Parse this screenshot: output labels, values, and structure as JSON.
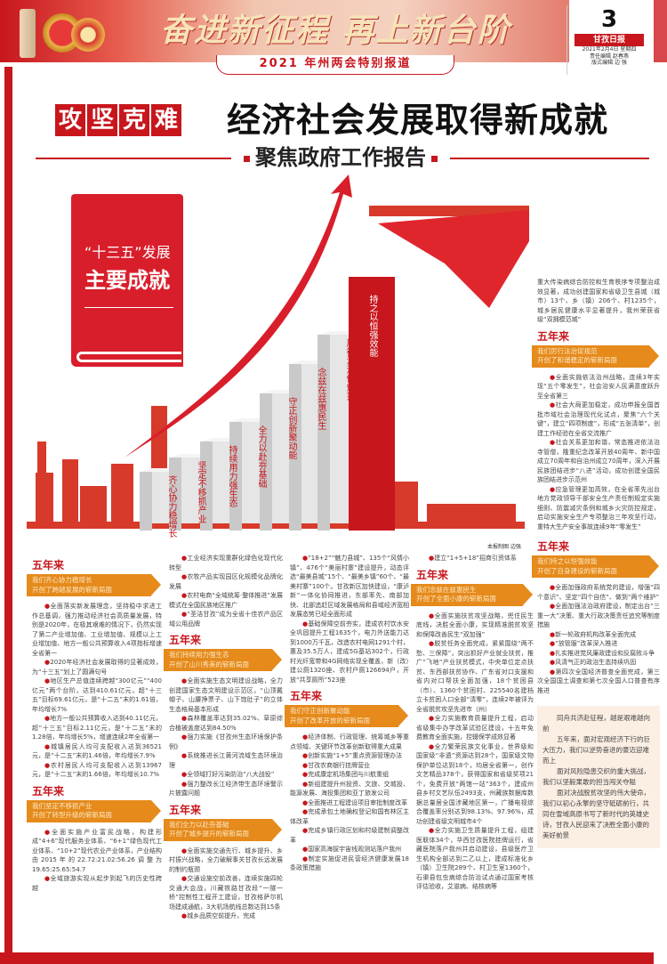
{
  "masthead": {
    "slogan": "奋进新征程 再上新台阶",
    "special_report": "2021 年州两会特别报道",
    "page_number": "3",
    "paper_name": "甘孜日报",
    "date": "2021年2月4日 星期四",
    "editor": "责任编辑 赵春燕",
    "layout_editor": "版式编辑 边 强"
  },
  "headline": {
    "kicker": [
      "攻",
      "坚",
      "克",
      "难"
    ],
    "title": "经济社会发展取得新成就",
    "subtitle": "聚焦政府工作报告"
  },
  "infographic": {
    "book_line1": "“十三五”发展",
    "book_line2": "主要成就",
    "steps": [
      "齐心协力稳增长",
      "坚定不移抓产业",
      "持续用力强生态",
      "全力以赴夯基础",
      "守正创新聚动能",
      "念兹在兹惠民生",
      "厉行法治促规范",
      "持之以恒强效能"
    ],
    "credit": "本报制图 边强",
    "colors": {
      "red": "#c8161d",
      "orange": "#e58a1b",
      "step_gray": "#e6e6e6"
    }
  },
  "sections_label": "五年来",
  "columns": {
    "right_top": {
      "paras": [
        "重大传染病综合防控和生育秩序专项整治成效显著，成功创建国家和省级卫生县城（城市）13个、乡（镇）206个、村1235个，城乡居民健康水平显著提升，我州荣获省级“双拥模范城”"
      ],
      "section": {
        "banner": [
          "我们厉行法治促规范",
          "开创了和谐稳定的崭新局面"
        ],
        "items": [
          "全面实施依法治州战略，连续3年实现“五个零发生”，社会治安人民满意度跃升至全省第三",
          "社会大局更加稳定，成功申报全国首批市域社会治理现代化试点，聚焦“六个关键”，建立“四项制度”，形成“五张清单”，创建工作经验在全省交流推广",
          "社会关系更加和谐，常态推进依法治寺管僧，隆重纪念改革开放40周年、新中国成立70周年和自治州成立70周年，深入开展民族团结进步“八进”活动，成功创建全国民族团结进步示范州",
          "应急管理更加高效，在全省率先出台地方党政领导干部安全生产责任制规定实施细则、防震减灾条例和城乡火灾防控规定，启动实施安全生产专项整治三年攻坚行动，重特大生产安全事故连续9年“零发生”"
        ]
      }
    },
    "col1": [
      {
        "banner": [
          "我们齐心协力稳增长",
          "开创了跨越发展的崭新局面"
        ],
        "items": [
          "全面落实新发展理念，坚持稳中求进工作总基调，强力推动经济社会高质量发展，特别是2020年，在极其艰难的情况下，仍然实现了第二产业增加值、工业增加值、规模以上工业增加值、地方一般公共预算收入4项指标增速全省第一",
          "2020年经济社会发展取得的显著成效，为“十三五”划上了圆满句号",
          "地区生产总值连续跨越“300亿元”“400亿元”两个台阶，达到410.61亿元，超“十三五”目标69.61亿元，是“十二五”末的1.61倍，年均增长7%",
          "地方一般公共预算收入达到40.11亿元，超“十三五”目标2.11亿元，是“十二五”末的1.28倍，年均增长5%，增速连续2年全省第一",
          "城镇居民人均可支配收入达到36521元，是“十二五”末的1.46倍，年均增长7.9%",
          "农村居民人均可支配收入达到13967元，是“十二五”末的1.66倍，年均增长10.7%"
        ]
      },
      {
        "banner": [
          "我们坚定不移抓产业",
          "开创了转型升级的崭新局面"
        ],
        "items": [
          "全面实施产业富民战略，构建形成“4+6”现代服务业体系、“6+1”绿色现代工业体系、“10+2”现代农业产业体系，产业结构由2015年的22.72:21.02:56.26调整为19.65:25.65:54.7",
          "全域旅游实现从起步到起飞的历史性跨越"
        ]
      }
    ],
    "col2": [
      {
        "banner": null,
        "items": [
          "工业经济实现重群化绿色化现代化转型",
          "农牧产品实现园区化规模化品牌化发展",
          "农村电商“全域统筹·整体推进”发展模式在全国民族地区推广",
          "“圣洁甘孜”成为全省十佳农产品区域公用品牌"
        ]
      },
      {
        "banner": [
          "我们持续用力强生态",
          "开创了山川秀美的崭新局面"
        ],
        "items": [
          "全面实施生态文明建设战略，全力创建国家生态文明建设示范区，“山顶戴帽子、山腰挣票子、山下饱肚子”的立体生态格局基本形成",
          "森林覆盖率达到35.02%、草原综合植被盖度达到84.50%",
          "强力实施《甘孜州生态环境保护条例》",
          "系统推进长江黄河流域生态环境治理",
          "全领域打好污染防治“八大战役”",
          "强力整改长江经济带生态环境警示片披露问题"
        ]
      },
      {
        "banner": [
          "我们全力以赴夯基础",
          "开创了城乡提升的崭新局面"
        ],
        "items": [
          "全面实施交通先行、城乡提升、乡村振兴战略，全力破解事关甘孜长远发展的制约瓶颈",
          "交通设施空前改善，连续实施四轮交通大会战，川藏铁路甘孜段“一隧一桥”控制性工程开工建设，甘孜格萨尔机场建成通航，3大机场航线总数达到15条",
          "城乡品质空前提升，完成"
        ]
      }
    ],
    "col3": [
      {
        "banner": null,
        "items": [
          "“18+2”“魅力县城”、135个“风情小镇”、476个“美丽村寨”建设提升，动态评选“最美县城”15个、“最美乡镇”60个、“最美村寨”100个。甘孜新区加快建设，“康泸新”一体化协同推进，东部率先、南部加快、北部追赶区域发展格局和县域经济宽相发展态势已经全面形成",
          "基础保障空前夯实，建成农村饮水安全巩固提升工程1635个，电力外送能力达到1000万千瓦，改造农村电网1291个村，惠及35.5万人，建成5G基站302个，行政村光纤宽带和4G网络实现全覆盖，新（改）建公厕1320座、农村户厕126694户，开放“共享厕所”523座"
        ]
      },
      {
        "banner": [
          "我们守正创新聚动能",
          "开创了改革开放的崭新局面"
        ],
        "items": [
          "经济体制、行政管理、统筹城乡等重点领域、关键环节改革创新取得重大成果",
          "创新实施“1+5”重点资源管理办法",
          "甘孜农商银行挂牌营业",
          "完成康定机场集团与川航重组",
          "新组建提升州投资、文旅、交城投、能源发展、海投集团和亚丁旅发公司",
          "全面推进工程建设项目审批制度改革",
          "完成承包土地确权登记和国有林区主体改革",
          "完成乡镇行政区划和村级建制调整改革",
          "国家高海拔宇宙线观测站落户我州",
          "制定实施促进民营经济健康发展18条政策措施"
        ]
      }
    ],
    "col4": [
      {
        "banner": null,
        "items": [
          "建立“1+5+18”招商引资体系"
        ]
      },
      {
        "banner": [
          "我们念兹在兹惠民生",
          "开创了全面小康的崭新局面"
        ],
        "items": [
          "全面实施扶贫攻坚战略，兜住民生底线，决胜全面小康，实现精准脱贫攻坚和保障改善民生“双加强”",
          "脱贫任务全面完成，紧紧围绕“两不愁、三保障”，突出抓好产业就业扶贫，推广“飞地”产业扶贫模式，中央单位定点扶贫、东西部扶贫协作、广东省对口支援和省内对口帮扶全面加强，18个贫困县（市）、1360个贫困村、225540名建档立卡贫困人口全部“清零”，连续2年被评为全省脱贫攻坚先进市（州）",
          "全力实施教育质量提升工程，启动省级集中办学改革试验区建设，十五年免费教育全面实施，控辍保学成效显著",
          "全力繁荣民族文化事业，世界级和国家级“非遗”资源达到28个，国家级文物保护单位达到18个，均居全省第一，创作文艺精品378个，获得国家和省级奖项21个，免费开放“两馆一站”363个，建成州县乡村文艺队伍2493支，州藏族数据库数据总量居全国涉藏地区第一，广播电视综合覆盖率分别达到98.13%、97.96%，成功创建省级文明城市4个",
          "全力实施卫生质量提升工程，组建医联体34个，华西甘孜医院挂牌运行，省藏医院落户我州并启动建设，县级医疗卫生机构全部达到二乙以上，建成标准化乡（镇）卫生院289个、村卫生室1360个，石渠县包虫病综合防治试点通过国家考核评估验收，艾滋病、结核病等"
        ]
      }
    ],
    "col5": [
      {
        "banner": [
          "我们持之以恒强效能",
          "开创了自身建设的崭新局面"
        ],
        "items": [
          "全面加强政府系统党的建设，增强“四个意识”、坚定“四个自信”、做到“两个维护”",
          "全面加强法治政府建设，制定出台“三重一大”决策、重大行政决策责任追究等制度措施",
          "新一轮政府机构改革全面完成",
          "“放管服”改革深入推进",
          "扎实推进党风廉政建设和反腐败斗争",
          "风清气正的政治生态持续巩固",
          "第四次全国经济普查全面完成，第三次全国国土调查和第七次全国人口普查有序推进"
        ]
      }
    ],
    "quote": [
      "同舟共济赴征程，越是艰难越向前",
      "五年来，面对宏观经济下行的巨大压力，我们以逆势奋进的豪迈迎难而上",
      "面对风险隐患交织的重大挑战，我们以坚毅果敢的担当闯关夺隘",
      "面对决战脱贫攻坚的伟大使命，我们以初心永擎的坚守砥砺前行，共同在雪域高原书写了新时代的英雄史诗，甘孜人民迎来了决胜全面小康的美好前景"
    ]
  }
}
